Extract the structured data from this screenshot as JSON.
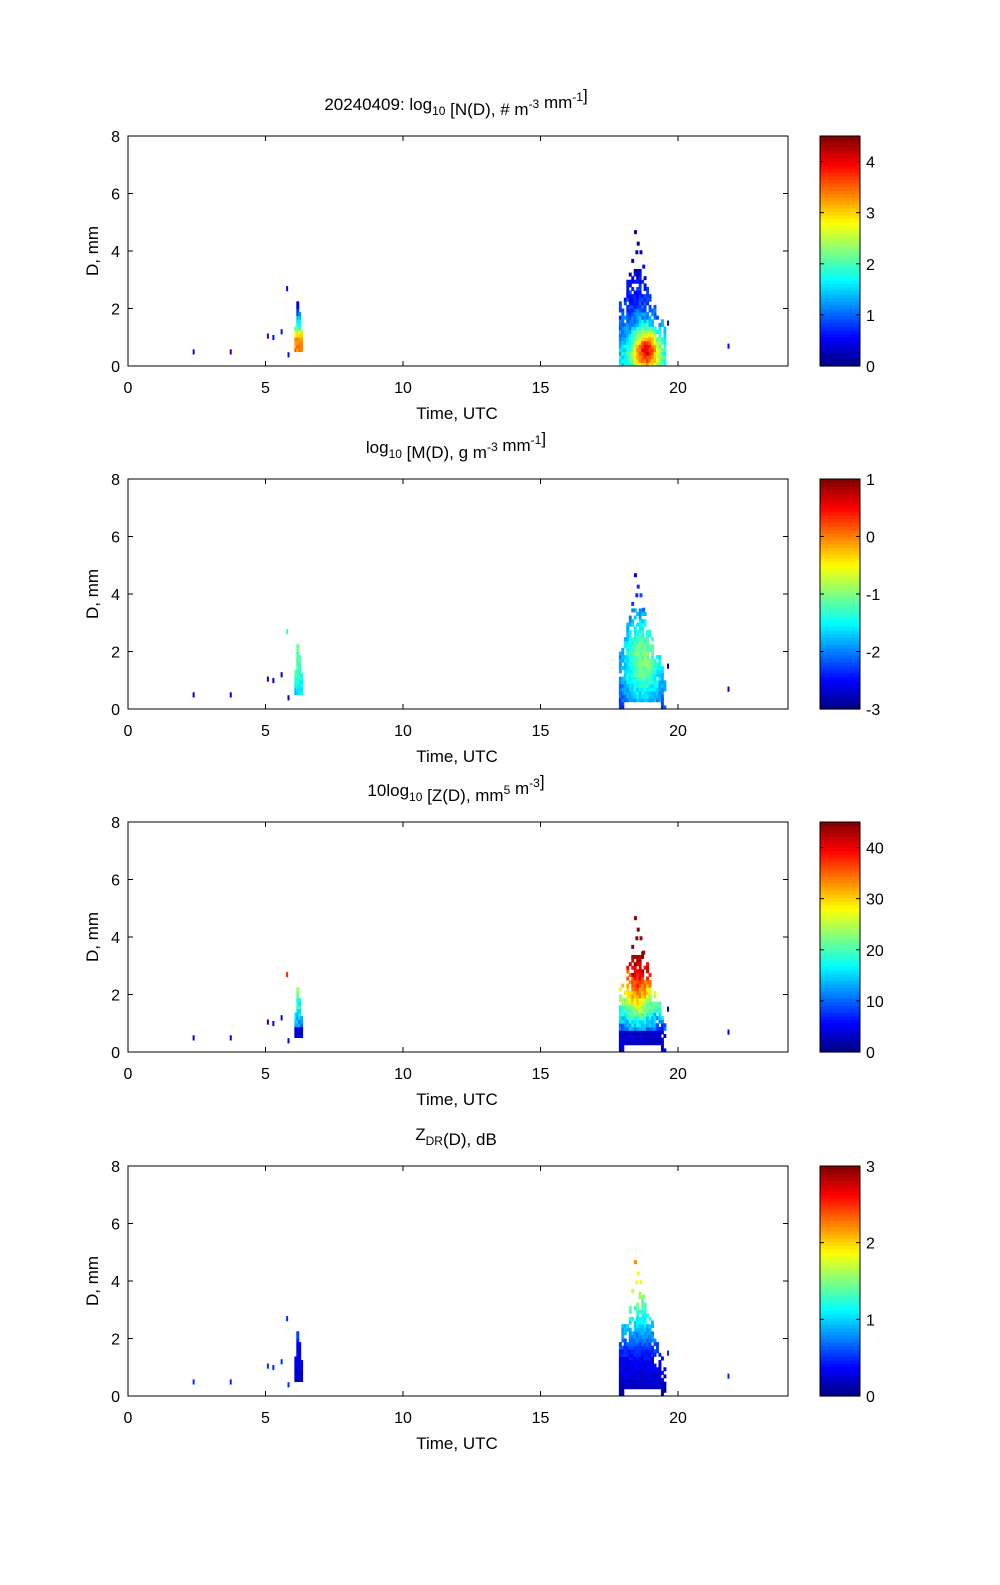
{
  "chart_data": [
    {
      "type": "heatmap",
      "title": {
        "parts": [
          {
            "t": "20240409: log"
          },
          {
            "t": "10",
            "s": "sub"
          },
          {
            "t": " [N(D), # m"
          },
          {
            "t": "-3",
            "s": "sup"
          },
          {
            "t": " mm"
          },
          {
            "t": "-1",
            "s": "sup"
          },
          {
            "t": "]"
          }
        ]
      },
      "xlabel": "Time, UTC",
      "ylabel": "D, mm",
      "xlim": [
        0,
        24
      ],
      "ylim": [
        0,
        8
      ],
      "xticks": [
        "0",
        "5",
        "10",
        "15",
        "20"
      ],
      "yticks": [
        "0",
        "2",
        "4",
        "6",
        "8"
      ],
      "colorbar": {
        "min": 0,
        "max": 4.5,
        "ticks": [
          "0",
          "1",
          "2",
          "3",
          "4"
        ],
        "tick_values": [
          0,
          1,
          2,
          3,
          4
        ]
      },
      "field": "N"
    },
    {
      "type": "heatmap",
      "title": {
        "parts": [
          {
            "t": "log"
          },
          {
            "t": "10",
            "s": "sub"
          },
          {
            "t": " [M(D), g m"
          },
          {
            "t": "-3",
            "s": "sup"
          },
          {
            "t": " mm"
          },
          {
            "t": "-1",
            "s": "sup"
          },
          {
            "t": "]"
          }
        ]
      },
      "xlabel": "Time, UTC",
      "ylabel": "D, mm",
      "xlim": [
        0,
        24
      ],
      "ylim": [
        0,
        8
      ],
      "xticks": [
        "0",
        "5",
        "10",
        "15",
        "20"
      ],
      "yticks": [
        "0",
        "2",
        "4",
        "6",
        "8"
      ],
      "colorbar": {
        "min": -3,
        "max": 1,
        "ticks": [
          "-3",
          "-2",
          "-1",
          "0",
          "1"
        ],
        "tick_values": [
          -3,
          -2,
          -1,
          0,
          1
        ]
      },
      "field": "M"
    },
    {
      "type": "heatmap",
      "title": {
        "parts": [
          {
            "t": "10log"
          },
          {
            "t": "10",
            "s": "sub"
          },
          {
            "t": " [Z(D),  mm"
          },
          {
            "t": "5",
            "s": "sup"
          },
          {
            "t": " m"
          },
          {
            "t": "-3",
            "s": "sup"
          },
          {
            "t": "]"
          }
        ]
      },
      "xlabel": "Time, UTC",
      "ylabel": "D, mm",
      "xlim": [
        0,
        24
      ],
      "ylim": [
        0,
        8
      ],
      "xticks": [
        "0",
        "5",
        "10",
        "15",
        "20"
      ],
      "yticks": [
        "0",
        "2",
        "4",
        "6",
        "8"
      ],
      "colorbar": {
        "min": 0,
        "max": 45,
        "ticks": [
          "0",
          "10",
          "20",
          "30",
          "40"
        ],
        "tick_values": [
          0,
          10,
          20,
          30,
          40
        ]
      },
      "field": "Z"
    },
    {
      "type": "heatmap",
      "title": {
        "parts": [
          {
            "t": "Z"
          },
          {
            "t": "DR",
            "s": "sub"
          },
          {
            "t": "(D), dB"
          }
        ]
      },
      "xlabel": "Time, UTC",
      "ylabel": "D, mm",
      "xlim": [
        0,
        24
      ],
      "ylim": [
        0,
        8
      ],
      "xticks": [
        "0",
        "5",
        "10",
        "15",
        "20"
      ],
      "yticks": [
        "0",
        "2",
        "4",
        "6",
        "8"
      ],
      "colorbar": {
        "min": 0,
        "max": 3,
        "ticks": [
          "0",
          "1",
          "2",
          "3"
        ],
        "tick_values": [
          0,
          1,
          2,
          3
        ]
      },
      "field": "ZDR"
    }
  ]
}
